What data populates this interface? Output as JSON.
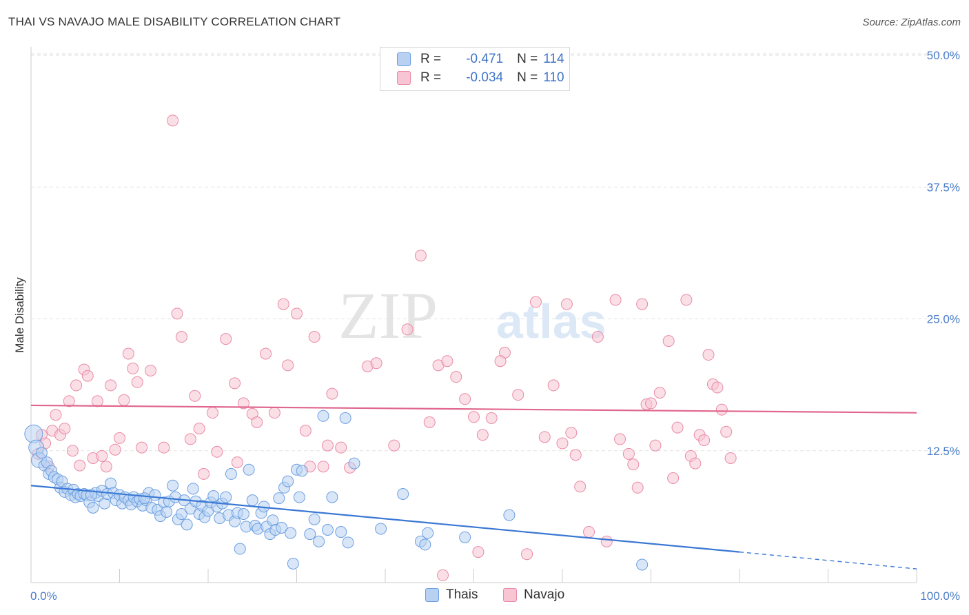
{
  "title": "THAI VS NAVAJO MALE DISABILITY CORRELATION CHART",
  "source": "Source: ZipAtlas.com",
  "watermark": {
    "zip": "ZIP",
    "atlas": "atlas"
  },
  "legend": {
    "items": [
      {
        "r_label": "R =",
        "r_value": "-0.471",
        "n_label": "N =",
        "n_value": "114",
        "color": "#6b9fe0",
        "fill": "#b8d1f3"
      },
      {
        "r_label": "R =",
        "r_value": "-0.034",
        "n_label": "N =",
        "n_value": "110",
        "color": "#e98aa6",
        "fill": "#f7c5d4"
      }
    ]
  },
  "bottom_legend": [
    {
      "label": "Thais",
      "color": "#6b9fe0",
      "fill": "#b8d1f3"
    },
    {
      "label": "Navajo",
      "color": "#e98aa6",
      "fill": "#f7c5d4"
    }
  ],
  "chart_data": {
    "type": "scatter",
    "ylabel": "Male Disability",
    "xlim": [
      0,
      100
    ],
    "ylim": [
      0,
      50
    ],
    "x_tick_labels": [
      "0.0%",
      "100.0%"
    ],
    "y_ticks": [
      12.5,
      25.0,
      37.5,
      50.0
    ],
    "y_tick_labels": [
      "12.5%",
      "25.0%",
      "37.5%",
      "50.0%"
    ],
    "grid": true,
    "colors": {
      "thais": "#3a78d4",
      "navajo": "#e0668e"
    },
    "series": [
      {
        "name": "Thais",
        "trend": {
          "x0": 0,
          "y0": 9.2,
          "x1": 80,
          "y1": 2.9,
          "dash_x1": 100,
          "dash_y1": 1.3
        },
        "points": [
          [
            0.3,
            14.1
          ],
          [
            0.6,
            12.8
          ],
          [
            0.9,
            11.6
          ],
          [
            1.2,
            12.3
          ],
          [
            1.5,
            11.1
          ],
          [
            1.8,
            11.4
          ],
          [
            2.0,
            10.3
          ],
          [
            2.3,
            10.6
          ],
          [
            2.6,
            10.0
          ],
          [
            3.0,
            9.8
          ],
          [
            3.3,
            9.0
          ],
          [
            3.5,
            9.6
          ],
          [
            3.8,
            8.6
          ],
          [
            4.1,
            8.9
          ],
          [
            4.5,
            8.3
          ],
          [
            4.8,
            8.8
          ],
          [
            5.0,
            8.1
          ],
          [
            5.3,
            8.4
          ],
          [
            5.6,
            8.2
          ],
          [
            6.0,
            8.4
          ],
          [
            6.3,
            8.3
          ],
          [
            6.6,
            7.6
          ],
          [
            7.0,
            7.1
          ],
          [
            7.3,
            8.5
          ],
          [
            7.6,
            8.2
          ],
          [
            8.0,
            8.7
          ],
          [
            8.3,
            7.5
          ],
          [
            8.6,
            8.4
          ],
          [
            9.0,
            9.4
          ],
          [
            9.3,
            8.5
          ],
          [
            9.6,
            7.8
          ],
          [
            10.0,
            8.3
          ],
          [
            10.3,
            7.5
          ],
          [
            10.6,
            8.1
          ],
          [
            11.0,
            7.8
          ],
          [
            11.3,
            7.4
          ],
          [
            11.6,
            8.1
          ],
          [
            12.0,
            7.7
          ],
          [
            12.3,
            7.9
          ],
          [
            12.6,
            7.3
          ],
          [
            13.0,
            7.8
          ],
          [
            13.3,
            8.5
          ],
          [
            13.6,
            7.1
          ],
          [
            14.0,
            8.3
          ],
          [
            14.3,
            6.9
          ],
          [
            14.6,
            6.3
          ],
          [
            15.0,
            7.6
          ],
          [
            15.3,
            6.7
          ],
          [
            15.6,
            7.7
          ],
          [
            16.0,
            9.2
          ],
          [
            16.3,
            8.1
          ],
          [
            16.6,
            6.0
          ],
          [
            17.0,
            6.5
          ],
          [
            17.3,
            7.8
          ],
          [
            17.6,
            5.5
          ],
          [
            18.0,
            7.0
          ],
          [
            18.3,
            8.9
          ],
          [
            18.6,
            7.7
          ],
          [
            19.0,
            6.5
          ],
          [
            19.3,
            7.3
          ],
          [
            19.6,
            6.2
          ],
          [
            20.0,
            6.8
          ],
          [
            20.3,
            7.6
          ],
          [
            20.6,
            8.2
          ],
          [
            21.0,
            7.2
          ],
          [
            21.3,
            6.1
          ],
          [
            21.6,
            7.5
          ],
          [
            22.0,
            8.1
          ],
          [
            22.3,
            6.4
          ],
          [
            22.6,
            10.3
          ],
          [
            23.0,
            5.8
          ],
          [
            23.3,
            6.6
          ],
          [
            23.6,
            3.2
          ],
          [
            24.0,
            6.5
          ],
          [
            24.3,
            5.3
          ],
          [
            24.6,
            10.7
          ],
          [
            25.0,
            7.8
          ],
          [
            25.3,
            5.4
          ],
          [
            25.6,
            5.1
          ],
          [
            26.0,
            6.6
          ],
          [
            26.3,
            7.2
          ],
          [
            26.6,
            5.3
          ],
          [
            27.0,
            4.6
          ],
          [
            27.3,
            5.9
          ],
          [
            27.6,
            5.0
          ],
          [
            28.0,
            8.0
          ],
          [
            28.3,
            5.2
          ],
          [
            28.6,
            9.0
          ],
          [
            29.0,
            9.6
          ],
          [
            29.3,
            4.7
          ],
          [
            29.6,
            1.8
          ],
          [
            30.0,
            10.7
          ],
          [
            30.3,
            8.1
          ],
          [
            30.6,
            10.6
          ],
          [
            31.5,
            4.6
          ],
          [
            32.0,
            6.0
          ],
          [
            32.5,
            3.9
          ],
          [
            33.0,
            15.8
          ],
          [
            33.5,
            5.0
          ],
          [
            34.0,
            8.1
          ],
          [
            35.0,
            4.8
          ],
          [
            35.5,
            15.6
          ],
          [
            35.8,
            3.8
          ],
          [
            36.5,
            11.3
          ],
          [
            39.5,
            5.1
          ],
          [
            42.0,
            8.4
          ],
          [
            44.0,
            3.9
          ],
          [
            44.5,
            3.6
          ],
          [
            44.8,
            4.7
          ],
          [
            49.0,
            4.3
          ],
          [
            54.0,
            6.4
          ],
          [
            69.0,
            1.7
          ],
          [
            6.8,
            8.3
          ],
          [
            12.8,
            8.0
          ]
        ]
      },
      {
        "name": "Navajo",
        "trend": {
          "x0": 0,
          "y0": 16.8,
          "x1": 100,
          "y1": 16.1
        },
        "points": [
          [
            0.8,
            12.2
          ],
          [
            1.2,
            14.0
          ],
          [
            1.6,
            13.2
          ],
          [
            2.0,
            11.0
          ],
          [
            2.4,
            14.4
          ],
          [
            2.8,
            15.9
          ],
          [
            3.3,
            14.0
          ],
          [
            3.8,
            14.6
          ],
          [
            4.3,
            17.2
          ],
          [
            4.7,
            12.5
          ],
          [
            5.1,
            18.7
          ],
          [
            5.5,
            11.1
          ],
          [
            6.0,
            20.2
          ],
          [
            6.4,
            19.6
          ],
          [
            7.0,
            11.8
          ],
          [
            7.5,
            17.2
          ],
          [
            8.0,
            12.0
          ],
          [
            8.5,
            11.0
          ],
          [
            9.0,
            18.7
          ],
          [
            9.5,
            12.6
          ],
          [
            10.0,
            13.7
          ],
          [
            10.5,
            17.3
          ],
          [
            11.0,
            21.7
          ],
          [
            11.5,
            20.3
          ],
          [
            12.0,
            19.0
          ],
          [
            12.5,
            12.8
          ],
          [
            13.5,
            20.1
          ],
          [
            15.0,
            12.8
          ],
          [
            16.0,
            43.8
          ],
          [
            16.5,
            25.5
          ],
          [
            17.0,
            23.3
          ],
          [
            18.0,
            13.6
          ],
          [
            18.5,
            17.7
          ],
          [
            19.0,
            14.6
          ],
          [
            19.5,
            10.3
          ],
          [
            20.5,
            16.1
          ],
          [
            21.0,
            12.4
          ],
          [
            22.0,
            23.1
          ],
          [
            23.0,
            18.9
          ],
          [
            23.3,
            11.4
          ],
          [
            24.0,
            17.0
          ],
          [
            25.0,
            16.0
          ],
          [
            25.5,
            15.2
          ],
          [
            26.5,
            21.7
          ],
          [
            27.5,
            16.1
          ],
          [
            28.5,
            26.4
          ],
          [
            29.0,
            20.6
          ],
          [
            30.0,
            25.5
          ],
          [
            31.0,
            14.4
          ],
          [
            31.5,
            11.0
          ],
          [
            32.0,
            23.3
          ],
          [
            33.5,
            13.0
          ],
          [
            34.0,
            17.9
          ],
          [
            35.0,
            12.8
          ],
          [
            38.0,
            20.5
          ],
          [
            44.0,
            31.0
          ],
          [
            45.0,
            15.2
          ],
          [
            46.0,
            20.6
          ],
          [
            47.0,
            21.0
          ],
          [
            48.0,
            19.5
          ],
          [
            49.0,
            17.4
          ],
          [
            50.0,
            15.7
          ],
          [
            51.0,
            14.0
          ],
          [
            52.0,
            15.6
          ],
          [
            53.5,
            21.8
          ],
          [
            56.0,
            2.7
          ],
          [
            57.0,
            26.6
          ],
          [
            58.0,
            13.8
          ],
          [
            59.0,
            18.7
          ],
          [
            60.0,
            13.2
          ],
          [
            61.0,
            14.2
          ],
          [
            61.5,
            12.1
          ],
          [
            62.0,
            9.1
          ],
          [
            63.0,
            4.8
          ],
          [
            64.0,
            23.3
          ],
          [
            65.0,
            3.9
          ],
          [
            66.0,
            26.8
          ],
          [
            66.5,
            13.6
          ],
          [
            67.5,
            12.2
          ],
          [
            68.0,
            11.2
          ],
          [
            68.5,
            9.0
          ],
          [
            69.0,
            26.4
          ],
          [
            69.5,
            16.9
          ],
          [
            70.0,
            17.0
          ],
          [
            70.5,
            13.0
          ],
          [
            71.0,
            18.0
          ],
          [
            72.0,
            22.9
          ],
          [
            72.5,
            9.9
          ],
          [
            73.0,
            14.7
          ],
          [
            74.0,
            26.8
          ],
          [
            74.5,
            12.0
          ],
          [
            75.0,
            11.3
          ],
          [
            75.5,
            14.0
          ],
          [
            76.0,
            13.5
          ],
          [
            76.5,
            21.6
          ],
          [
            77.0,
            18.8
          ],
          [
            77.5,
            18.5
          ],
          [
            78.0,
            16.4
          ],
          [
            78.5,
            14.3
          ],
          [
            79.0,
            11.8
          ],
          [
            36.0,
            10.9
          ],
          [
            39.0,
            20.8
          ],
          [
            41.0,
            13.0
          ],
          [
            42.5,
            24.0
          ],
          [
            46.5,
            0.7
          ],
          [
            50.5,
            2.9
          ],
          [
            53.0,
            21.0
          ],
          [
            55.0,
            17.8
          ],
          [
            33.0,
            11.0
          ],
          [
            60.5,
            26.4
          ]
        ]
      }
    ]
  }
}
